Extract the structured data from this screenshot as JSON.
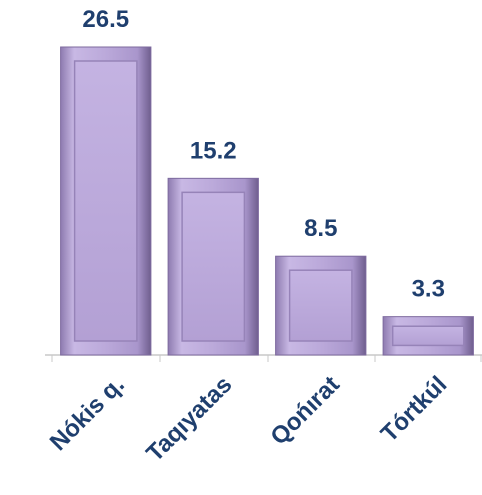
{
  "chart_data": {
    "type": "bar",
    "categories": [
      "Nókis q.",
      "Taqıyatas",
      "Qońırat",
      "Tórtkúl"
    ],
    "values": [
      26.5,
      15.2,
      8.5,
      3.3
    ],
    "color": "#b9a7d8"
  }
}
